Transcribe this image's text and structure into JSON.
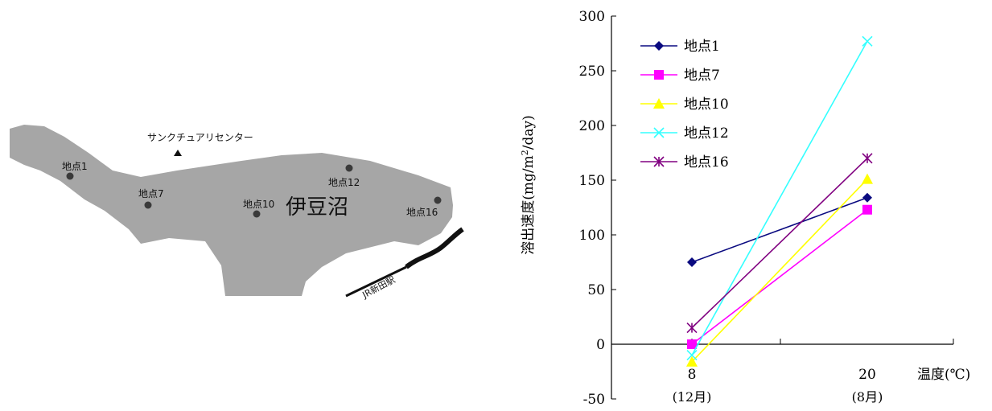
{
  "map": {
    "lake_name": "伊豆沼",
    "center_label": "サンクチュアリセンター",
    "station_label": "JR新田駅",
    "points": [
      {
        "label": "地点1"
      },
      {
        "label": "地点7"
      },
      {
        "label": "地点10"
      },
      {
        "label": "地点12"
      },
      {
        "label": "地点16"
      }
    ],
    "colors": {
      "lake": "#a6a6a6",
      "dots": "#3a3a3a",
      "rail": "#111111"
    }
  },
  "chart_data": {
    "type": "line",
    "ylabel_pre": "溶出速度(mg/m",
    "ylabel_sup": "2",
    "ylabel_post": "/day)",
    "xlabel": "温度(℃)",
    "ylim": [
      -50,
      300
    ],
    "yticks": [
      -50,
      0,
      50,
      100,
      150,
      200,
      250,
      300
    ],
    "categories": [
      {
        "value": "8",
        "sub": "(12月)"
      },
      {
        "value": "20",
        "sub": "(8月)"
      }
    ],
    "legend_position": "top-left",
    "grid": false,
    "series": [
      {
        "name": "地点1",
        "marker": "diamond",
        "color": "#0a0a80",
        "values": [
          75,
          134
        ]
      },
      {
        "name": "地点7",
        "marker": "square",
        "color": "#ff00ff",
        "values": [
          0,
          123
        ]
      },
      {
        "name": "地点10",
        "marker": "triangle",
        "color": "#ffff00",
        "values": [
          -16,
          151
        ]
      },
      {
        "name": "地点12",
        "marker": "x",
        "color": "#33ffff",
        "values": [
          -10,
          277
        ]
      },
      {
        "name": "地点16",
        "marker": "asterisk",
        "color": "#800080",
        "values": [
          15,
          170
        ]
      }
    ]
  }
}
